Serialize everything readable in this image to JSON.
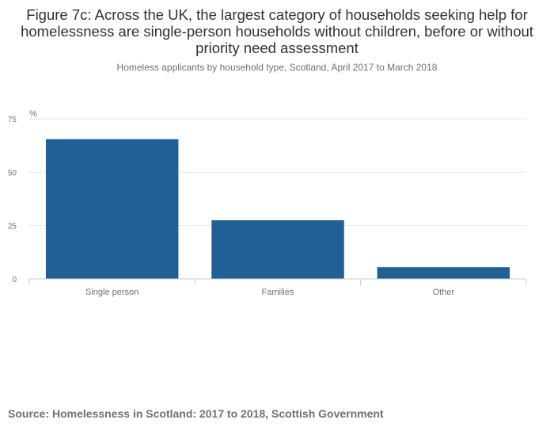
{
  "title": "Figure 7c: Across the UK, the largest category of households seeking help for homelessness are single-person households without children, before or without priority need assessment",
  "subtitle": "Homeless applicants by household type, Scotland, April 2017 to March 2018",
  "source": "Source: Homelessness in Scotland: 2017 to 2018, Scottish Government",
  "colors": {
    "bar": "#206095",
    "grid": "#e6e6e6",
    "axis": "#cccccc",
    "text": "#707071"
  },
  "chart_data": {
    "type": "bar",
    "categories": [
      "Single person",
      "Families",
      "Other"
    ],
    "values": [
      65.5,
      27.5,
      5.5
    ],
    "title": "Figure 7c: Across the UK, the largest category of households seeking help for homelessness are single-person households without children, before or without priority need assessment",
    "subtitle": "Homeless applicants by household type, Scotland, April 2017 to March 2018",
    "ylabel": "%",
    "xlabel": "",
    "ylim": [
      0,
      75
    ],
    "yticks": [
      0,
      25,
      50,
      75
    ],
    "grid": true,
    "legend": "none"
  }
}
